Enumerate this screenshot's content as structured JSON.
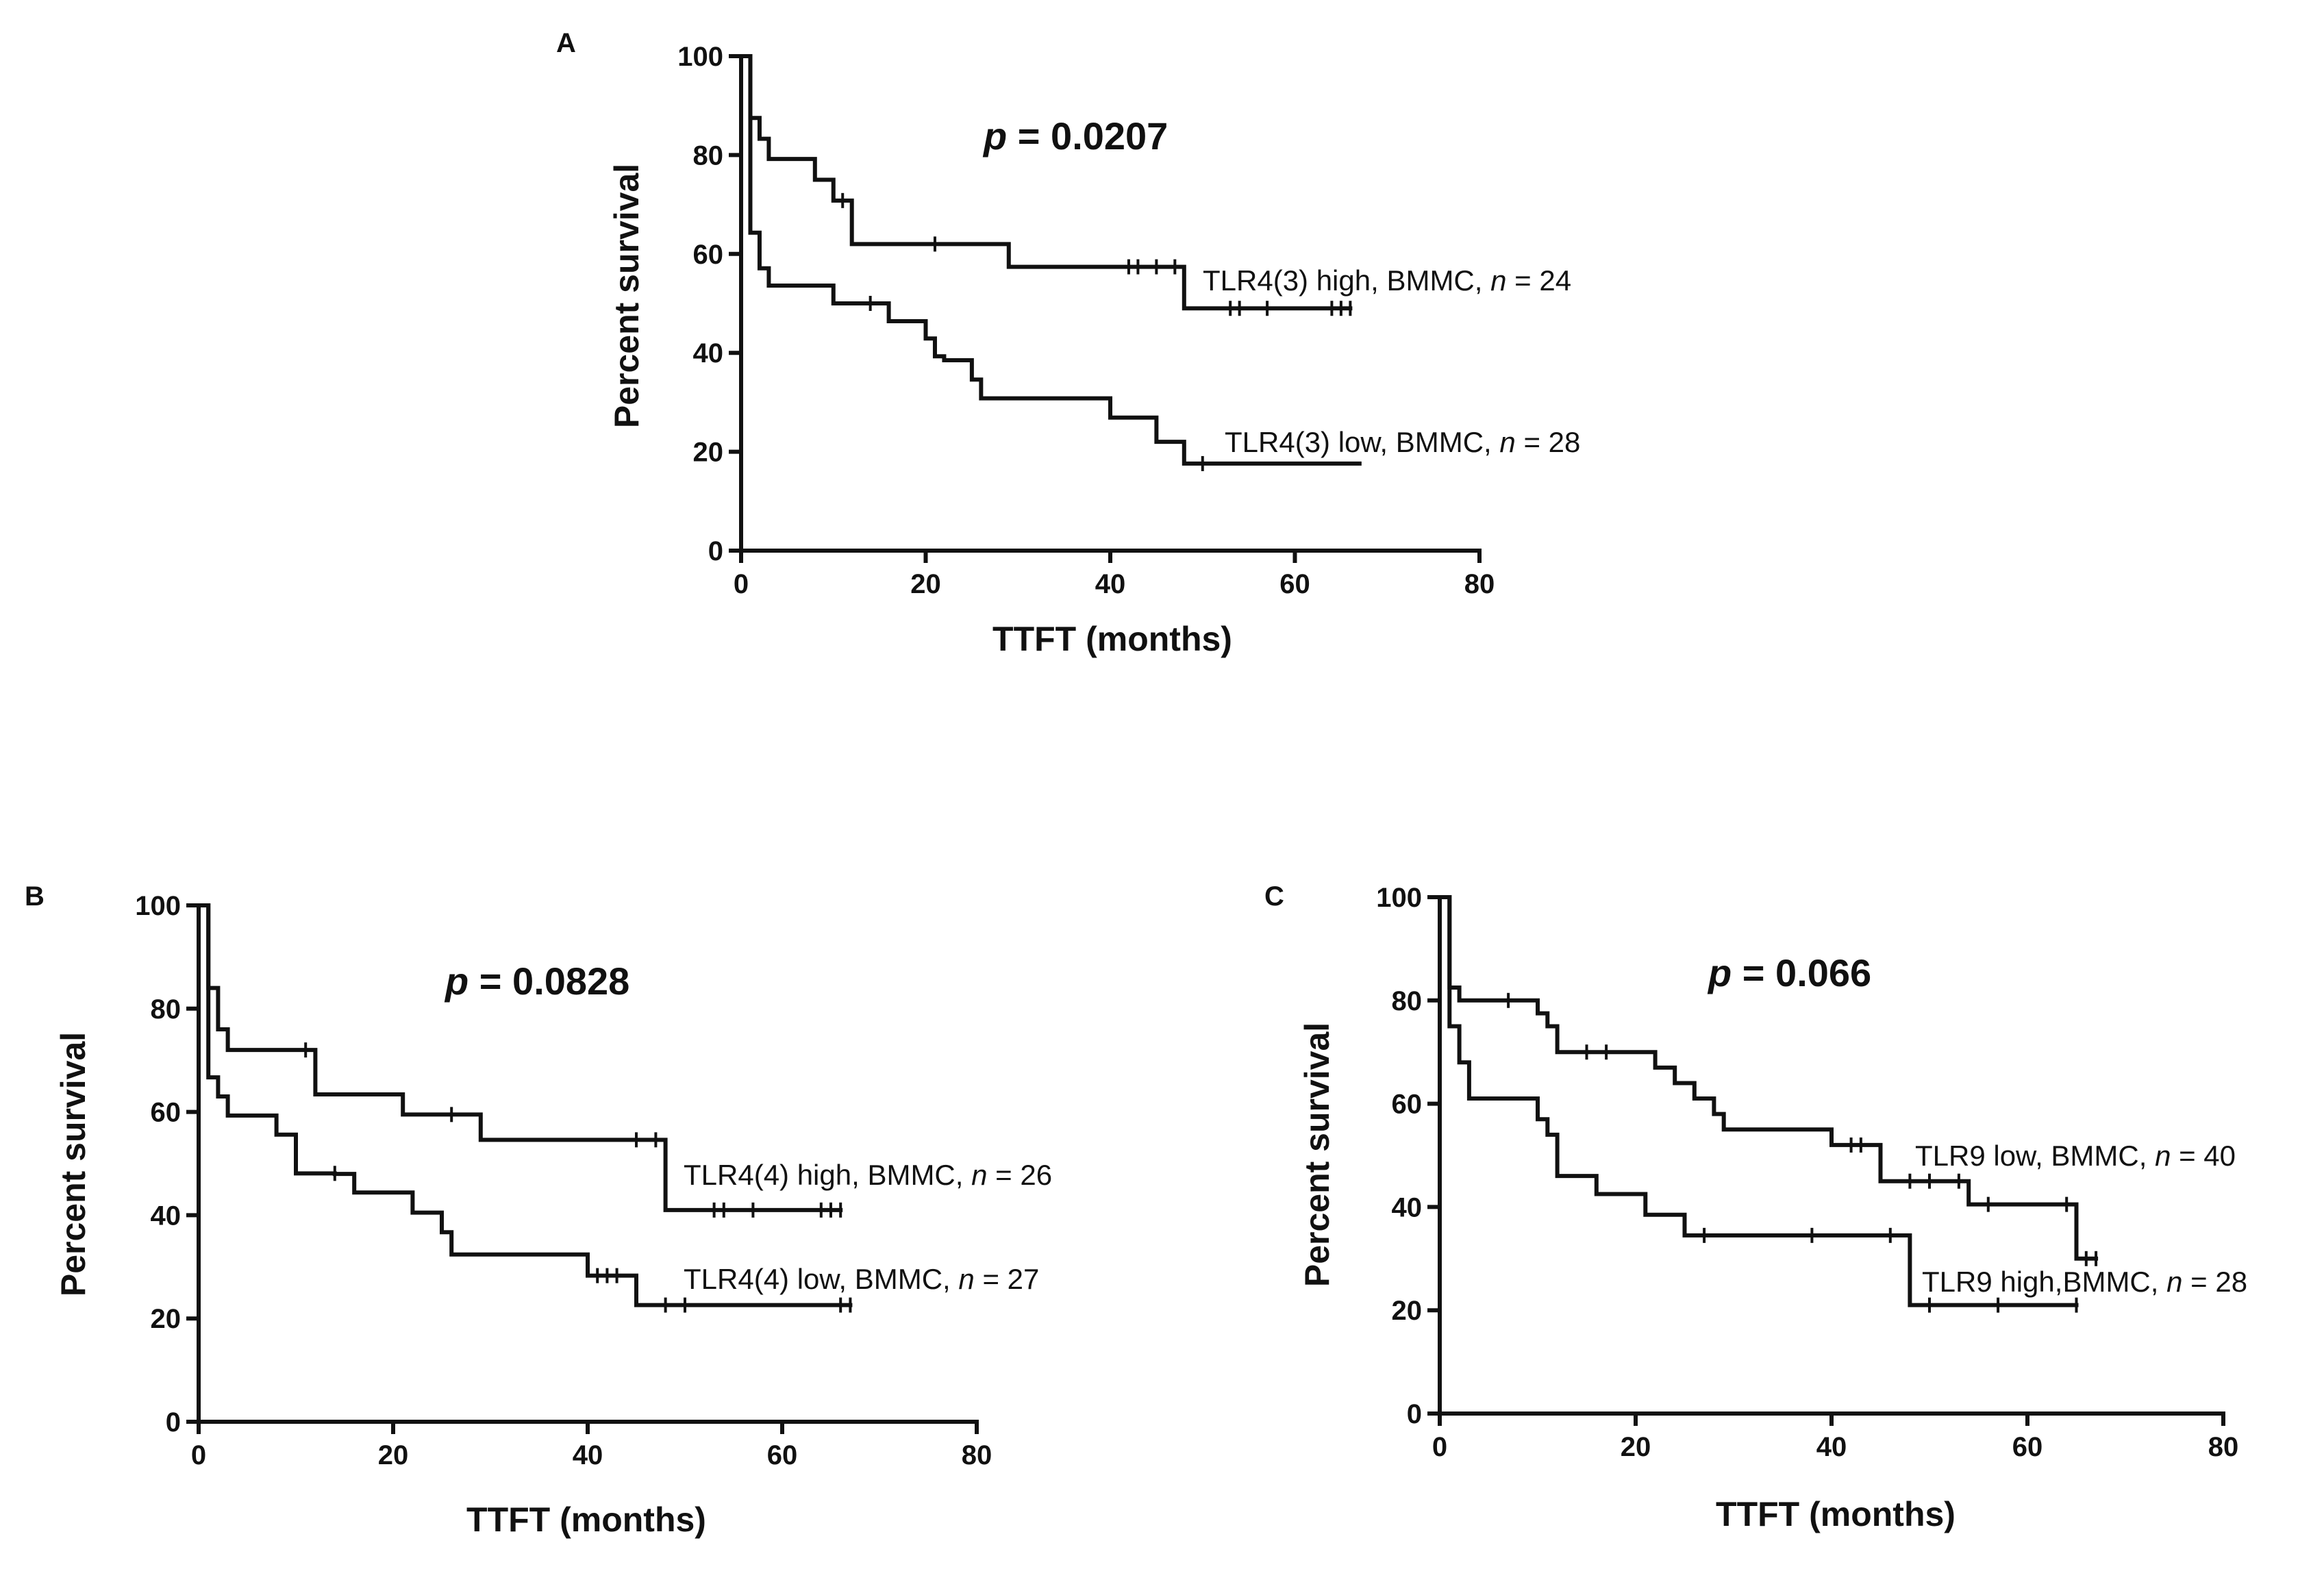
{
  "chart_data": [
    {
      "type": "line",
      "panel": "A",
      "p_label": "p",
      "p_value": "= 0.0207",
      "xlabel": "TTFT (months)",
      "ylabel": "Percent survival",
      "xlim": [
        0,
        80
      ],
      "ylim": [
        0,
        100
      ],
      "x_ticks": [
        0,
        20,
        40,
        60,
        80
      ],
      "y_ticks": [
        0,
        20,
        40,
        60,
        80,
        100
      ],
      "series": [
        {
          "name": "TLR4(3) high",
          "label_prefix": "TLR4(3) high, BMMC,",
          "n_label": "n",
          "n_value": "= 24",
          "steps": [
            [
              0,
              100
            ],
            [
              1,
              87.5
            ],
            [
              2,
              83.3
            ],
            [
              3,
              79.2
            ],
            [
              8,
              75
            ],
            [
              10,
              70.8
            ],
            [
              12,
              62
            ],
            [
              29,
              57.4
            ],
            [
              48,
              49
            ]
          ],
          "end": 66,
          "censors": [
            [
              11,
              70.8
            ],
            [
              21,
              62
            ],
            [
              42,
              57.4
            ],
            [
              43,
              57.4
            ],
            [
              45,
              57.4
            ],
            [
              47,
              57.4
            ],
            [
              53,
              49
            ],
            [
              54,
              49
            ],
            [
              57,
              49
            ],
            [
              64,
              49
            ],
            [
              65,
              49
            ],
            [
              66,
              49
            ]
          ]
        },
        {
          "name": "TLR4(3) low",
          "label_prefix": "TLR4(3) low, BMMC,",
          "n_label": "n",
          "n_value": "= 28",
          "steps": [
            [
              0,
              100
            ],
            [
              1,
              64.3
            ],
            [
              2,
              57.1
            ],
            [
              3,
              53.6
            ],
            [
              10,
              50
            ],
            [
              16,
              46.4
            ],
            [
              20,
              42.9
            ],
            [
              21,
              39.3
            ],
            [
              22,
              38.5
            ],
            [
              25,
              34.6
            ],
            [
              26,
              30.8
            ],
            [
              40,
              26.9
            ],
            [
              45,
              22
            ],
            [
              48,
              17.6
            ]
          ],
          "end": 67,
          "censors": [
            [
              14,
              50
            ],
            [
              50,
              17.6
            ]
          ]
        }
      ]
    },
    {
      "type": "line",
      "panel": "B",
      "p_label": "p",
      "p_value": "= 0.0828",
      "xlabel": "TTFT (months)",
      "ylabel": "Percent survival",
      "xlim": [
        0,
        80
      ],
      "ylim": [
        0,
        100
      ],
      "x_ticks": [
        0,
        20,
        40,
        60,
        80
      ],
      "y_ticks": [
        0,
        20,
        40,
        60,
        80,
        100
      ],
      "series": [
        {
          "name": "TLR4(4) high",
          "label_prefix": "TLR4(4) high, BMMC,",
          "n_label": "n",
          "n_value": "= 26",
          "steps": [
            [
              0,
              100
            ],
            [
              1,
              84
            ],
            [
              2,
              76
            ],
            [
              3,
              72
            ],
            [
              12,
              63.4
            ],
            [
              21,
              59.5
            ],
            [
              29,
              54.6
            ],
            [
              48,
              41
            ]
          ],
          "end": 66,
          "censors": [
            [
              11,
              72
            ],
            [
              26,
              59.5
            ],
            [
              45,
              54.6
            ],
            [
              47,
              54.6
            ],
            [
              53,
              41
            ],
            [
              54,
              41
            ],
            [
              57,
              41
            ],
            [
              64,
              41
            ],
            [
              65,
              41
            ],
            [
              66,
              41
            ]
          ]
        },
        {
          "name": "TLR4(4) low",
          "label_prefix": "TLR4(4) low, BMMC,",
          "n_label": "n",
          "n_value": "= 27",
          "steps": [
            [
              0,
              100
            ],
            [
              1,
              66.7
            ],
            [
              2,
              63
            ],
            [
              3,
              59.3
            ],
            [
              8,
              55.6
            ],
            [
              10,
              48.1
            ],
            [
              14,
              48
            ],
            [
              16,
              44.4
            ],
            [
              22,
              40.5
            ],
            [
              25,
              36.7
            ],
            [
              26,
              32.4
            ],
            [
              40,
              28.3
            ],
            [
              45,
              22.6
            ]
          ],
          "end": 67,
          "censors": [
            [
              14,
              48.1
            ],
            [
              41,
              28.3
            ],
            [
              42,
              28.3
            ],
            [
              43,
              28.3
            ],
            [
              48,
              22.6
            ],
            [
              50,
              22.6
            ],
            [
              66,
              22.6
            ],
            [
              67,
              22.6
            ]
          ]
        }
      ]
    },
    {
      "type": "line",
      "panel": "C",
      "p_label": "p",
      "p_value": "= 0.066",
      "xlabel": "TTFT (months)",
      "ylabel": "Percent survival",
      "xlim": [
        0,
        80
      ],
      "ylim": [
        0,
        100
      ],
      "x_ticks": [
        0,
        20,
        40,
        60,
        80
      ],
      "y_ticks": [
        0,
        20,
        40,
        60,
        80,
        100
      ],
      "series": [
        {
          "name": "TLR9 low",
          "label_prefix": "TLR9 low, BMMC,",
          "n_label": "n",
          "n_value": "= 40",
          "steps": [
            [
              0,
              100
            ],
            [
              1,
              82.5
            ],
            [
              2,
              80
            ],
            [
              10,
              77.5
            ],
            [
              11,
              75
            ],
            [
              12,
              70
            ],
            [
              22,
              67
            ],
            [
              24,
              64
            ],
            [
              26,
              61
            ],
            [
              28,
              58
            ],
            [
              29,
              55
            ],
            [
              40,
              52
            ],
            [
              45,
              45
            ],
            [
              54,
              40.5
            ],
            [
              65,
              30
            ]
          ],
          "end": 67,
          "censors": [
            [
              7,
              80
            ],
            [
              15,
              70
            ],
            [
              17,
              70
            ],
            [
              42,
              52
            ],
            [
              43,
              52
            ],
            [
              48,
              45
            ],
            [
              50,
              45
            ],
            [
              53,
              45
            ],
            [
              56,
              40.5
            ],
            [
              64,
              40.5
            ],
            [
              66,
              30
            ],
            [
              67,
              30
            ]
          ]
        },
        {
          "name": "TLR9 high",
          "label_prefix": "TLR9 high,BMMC,",
          "n_label": "n",
          "n_value": "= 28",
          "steps": [
            [
              0,
              100
            ],
            [
              1,
              75
            ],
            [
              2,
              68
            ],
            [
              3,
              61
            ],
            [
              10,
              57
            ],
            [
              11,
              54
            ],
            [
              12,
              46
            ],
            [
              16,
              42.5
            ],
            [
              21,
              38.5
            ],
            [
              25,
              34.5
            ],
            [
              48,
              21
            ]
          ],
          "end": 65,
          "censors": [
            [
              27,
              34.5
            ],
            [
              38,
              34.5
            ],
            [
              46,
              34.5
            ],
            [
              50,
              21
            ],
            [
              57,
              21
            ],
            [
              65,
              21
            ]
          ]
        }
      ]
    }
  ]
}
